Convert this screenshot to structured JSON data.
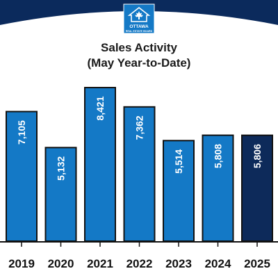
{
  "logo": {
    "name": "OTTAWA",
    "subtitle": "REAL ESTATE BOARD"
  },
  "colors": {
    "banner": "#0b2a5c",
    "bar": "#1479c6",
    "highlight_bar": "#0d2a5a",
    "outline": "#111111",
    "logo_box": "#1479c6"
  },
  "chart_data": {
    "type": "bar",
    "title": "Sales Activity",
    "subtitle": "(May Year-to-Date)",
    "categories": [
      "2019",
      "2020",
      "2021",
      "2022",
      "2023",
      "2024",
      "2025"
    ],
    "values": [
      7105,
      5132,
      8421,
      7362,
      5514,
      5808,
      5806
    ],
    "value_labels": [
      "7,105",
      "5,132",
      "8,421",
      "7,362",
      "5,514",
      "5,808",
      "5,806"
    ],
    "highlight_category": "2025",
    "xlabel": "",
    "ylabel": "",
    "grid": false,
    "legend": "none"
  }
}
